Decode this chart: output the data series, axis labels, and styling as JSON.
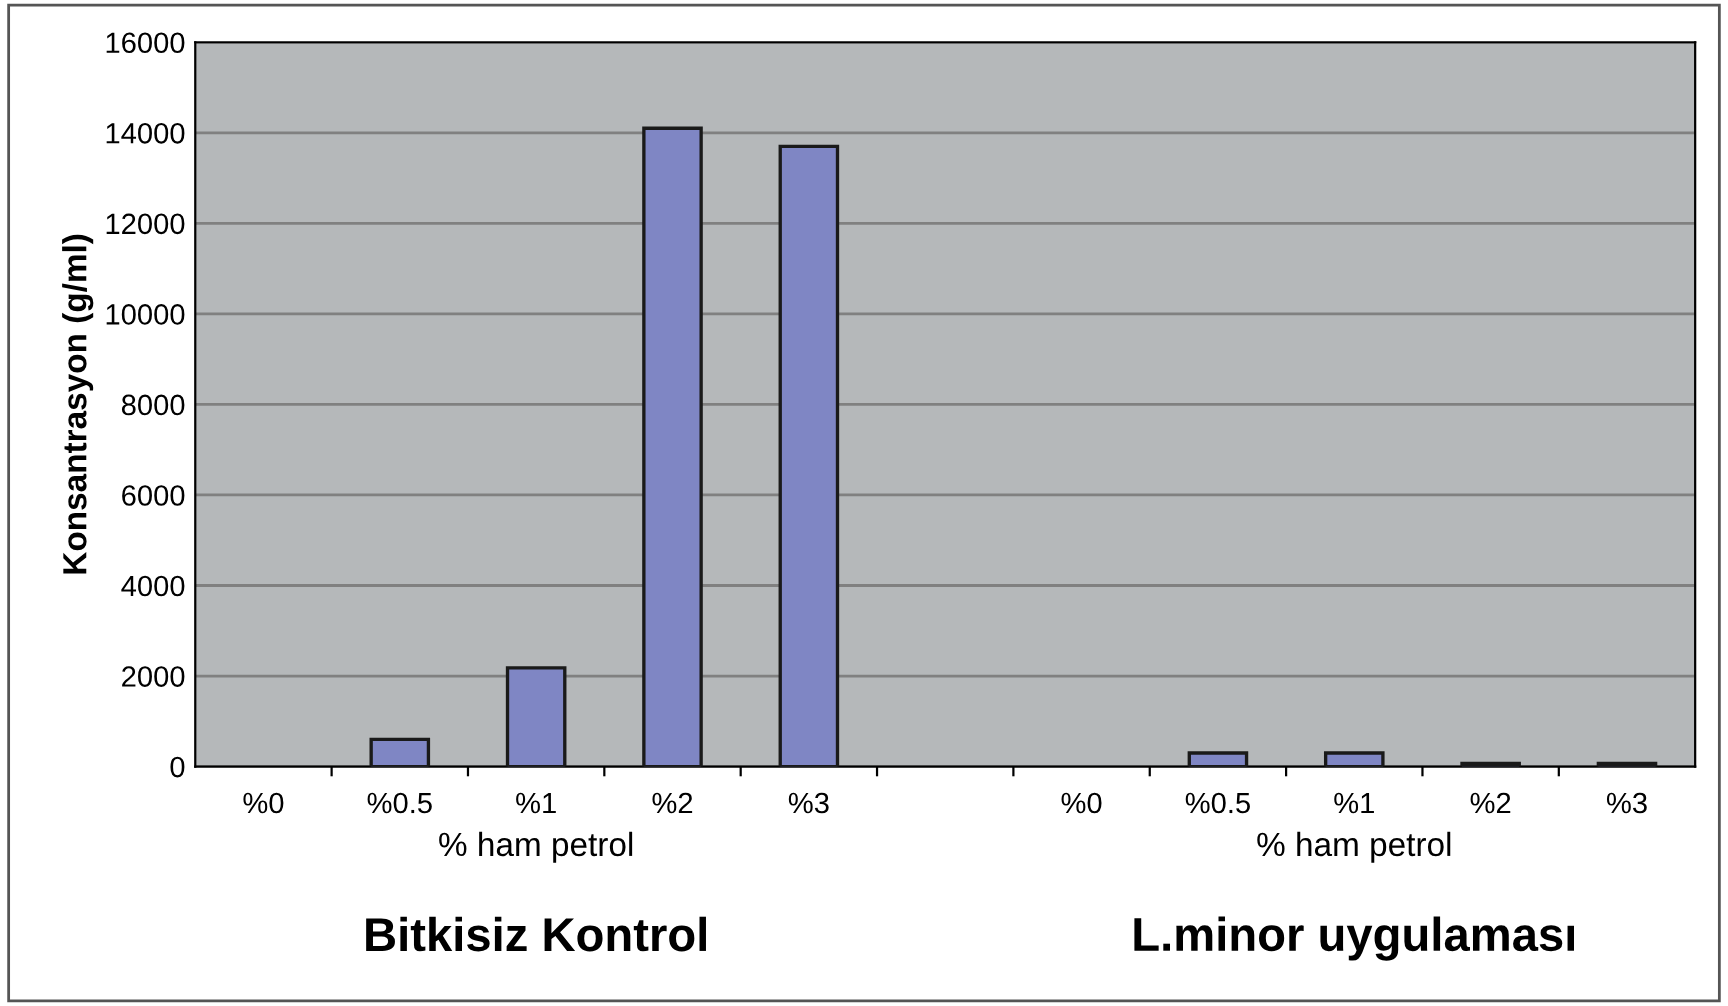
{
  "chart_data": {
    "type": "bar",
    "categories": [
      "%0",
      "%0.5",
      "%1",
      "%2",
      "%3",
      null,
      "%0",
      "%0.5",
      "%1",
      "%2",
      "%3"
    ],
    "values": [
      null,
      600,
      2180,
      14100,
      13700,
      null,
      null,
      300,
      300,
      70,
      70
    ],
    "color": "#7f86c4",
    "xlabel": "% ham petrol",
    "ylabel": "Konsantrasyon (g/ml)",
    "annotations": [
      "% ham petrol",
      "Bitkisiz Kontrol",
      "L.minor uygulaması"
    ],
    "ylim": [
      0,
      16000
    ],
    "yticks": [
      0,
      2000,
      4000,
      6000,
      8000,
      10000,
      12000,
      14000,
      16000
    ],
    "grid": "y"
  }
}
